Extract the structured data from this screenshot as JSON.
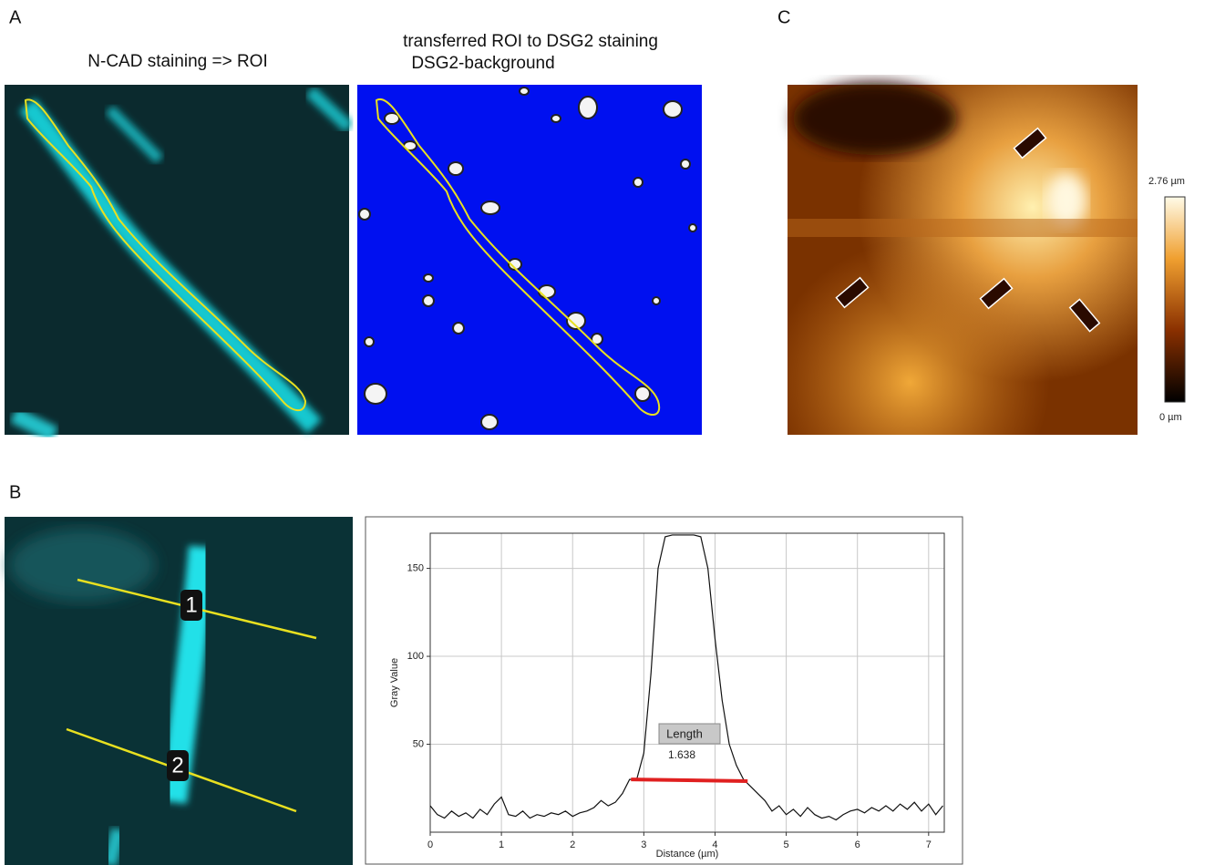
{
  "panels": {
    "a": {
      "label": "A",
      "left_caption": "N-CAD staining => ROI",
      "right_caption": [
        "transferred ROI to DSG2 staining",
        "DSG2-background"
      ]
    },
    "b": {
      "label": "B",
      "line_labels": [
        "1",
        "2"
      ]
    },
    "c": {
      "label": "C",
      "colorbar_max": "2.76 µm",
      "colorbar_min": "0 µm"
    }
  },
  "chart_data": {
    "type": "line",
    "x_label": "Distance (µm)",
    "y_label": "Gray Value",
    "xlim": [
      0,
      7.22
    ],
    "ylim": [
      0,
      170
    ],
    "xticks": [
      0,
      1,
      2,
      3,
      4,
      5,
      6,
      7
    ],
    "yticks": [
      50,
      100,
      150
    ],
    "grid": true,
    "x": [
      0,
      0.1,
      0.2,
      0.3,
      0.4,
      0.5,
      0.6,
      0.7,
      0.8,
      0.9,
      1.0,
      1.1,
      1.2,
      1.3,
      1.4,
      1.5,
      1.6,
      1.7,
      1.8,
      1.9,
      2.0,
      2.1,
      2.2,
      2.3,
      2.4,
      2.5,
      2.6,
      2.7,
      2.8,
      2.9,
      3.0,
      3.1,
      3.2,
      3.3,
      3.4,
      3.5,
      3.6,
      3.7,
      3.8,
      3.9,
      4.0,
      4.1,
      4.2,
      4.3,
      4.4,
      4.5,
      4.6,
      4.7,
      4.8,
      4.9,
      5.0,
      5.1,
      5.2,
      5.3,
      5.4,
      5.5,
      5.6,
      5.7,
      5.8,
      5.9,
      6.0,
      6.1,
      6.2,
      6.3,
      6.4,
      6.5,
      6.6,
      6.7,
      6.8,
      6.9,
      7.0,
      7.1,
      7.2
    ],
    "series": [
      {
        "color": "#111111",
        "values": [
          15,
          10,
          8,
          12,
          9,
          11,
          8,
          13,
          10,
          16,
          20,
          10,
          9,
          12,
          8,
          10,
          9,
          11,
          10,
          12,
          9,
          11,
          12,
          14,
          18,
          15,
          17,
          22,
          30,
          30,
          45,
          90,
          150,
          168,
          169,
          169,
          169,
          169,
          168,
          150,
          110,
          75,
          50,
          38,
          30,
          26,
          22,
          18,
          12,
          15,
          10,
          13,
          9,
          14,
          10,
          8,
          9,
          7,
          10,
          12,
          13,
          11,
          14,
          12,
          15,
          12,
          16,
          13,
          17,
          12,
          16,
          10,
          15
        ]
      }
    ],
    "length_label": "Length",
    "length": 1.638,
    "length_bar": {
      "color": "#e02020",
      "x": [
        2.82,
        4.458
      ],
      "y": [
        30,
        29
      ]
    }
  }
}
